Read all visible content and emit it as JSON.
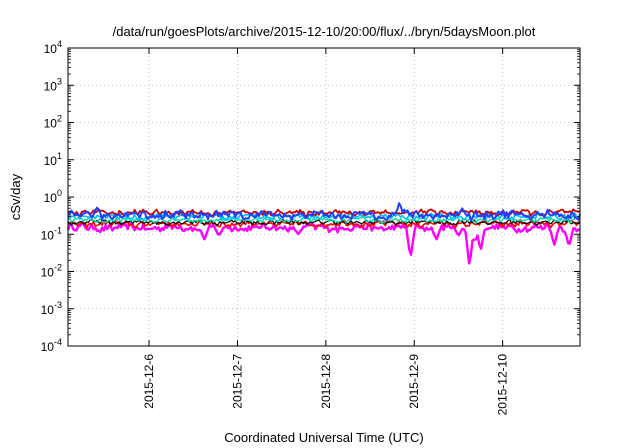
{
  "chart_data": {
    "type": "line",
    "title": "/data/run/goesPlots/archive/2015-12-10/20:00/flux/../bryn/5daysMoon.plot",
    "xlabel": "Coordinated Universal Time (UTC)",
    "ylabel": "cSv/day",
    "yscale": "log",
    "ylim": [
      0.0001,
      10000
    ],
    "y_ticks": [
      {
        "value": 0.0001,
        "base": "10",
        "exp": "-4"
      },
      {
        "value": 0.001,
        "base": "10",
        "exp": "-3"
      },
      {
        "value": 0.01,
        "base": "10",
        "exp": "-2"
      },
      {
        "value": 0.1,
        "base": "10",
        "exp": "-1"
      },
      {
        "value": 1,
        "base": "10",
        "exp": "0"
      },
      {
        "value": 10,
        "base": "10",
        "exp": "1"
      },
      {
        "value": 100,
        "base": "10",
        "exp": "2"
      },
      {
        "value": 1000,
        "base": "10",
        "exp": "3"
      },
      {
        "value": 10000,
        "base": "10",
        "exp": "4"
      }
    ],
    "xlim": [
      "2015-12-05 02:00",
      "2015-12-10 21:00"
    ],
    "x_ticks": [
      "2015-12-6",
      "2015-12-7",
      "2015-12-8",
      "2015-12-9",
      "2015-12-10"
    ],
    "x_tick_dates": [
      "2015-12-06 00:00",
      "2015-12-07 00:00",
      "2015-12-08 00:00",
      "2015-12-09 00:00",
      "2015-12-10 00:00"
    ],
    "grid": true,
    "series": [
      {
        "color": "#ff00ff",
        "level": 0.15,
        "noise": 0.16,
        "lw": 2.4,
        "dips": [
          {
            "x": "2015-12-06 15:00",
            "y": 0.07
          },
          {
            "x": "2015-12-06 19:00",
            "y": 0.09
          },
          {
            "x": "2015-12-07 16:30",
            "y": 0.1
          },
          {
            "x": "2015-12-08 23:00",
            "y": 0.023
          },
          {
            "x": "2015-12-09 06:00",
            "y": 0.07
          },
          {
            "x": "2015-12-09 12:00",
            "y": 0.09
          },
          {
            "x": "2015-12-09 15:00",
            "y": 0.013
          },
          {
            "x": "2015-12-09 16:30",
            "y": 0.06
          },
          {
            "x": "2015-12-09 18:00",
            "y": 0.035
          },
          {
            "x": "2015-12-10 14:00",
            "y": 0.05
          },
          {
            "x": "2015-12-10 18:00",
            "y": 0.045
          }
        ]
      },
      {
        "color": "#ff0000",
        "level": 0.19,
        "noise": 0.12,
        "lw": 1.6,
        "dips": []
      },
      {
        "color": "#000000",
        "level": 0.21,
        "noise": 0.1,
        "lw": 1.2,
        "dips": []
      },
      {
        "color": "#00e0a0",
        "level": 0.24,
        "noise": 0.1,
        "lw": 1.4,
        "dips": []
      },
      {
        "color": "#00bfff",
        "level": 0.3,
        "noise": 0.12,
        "lw": 1.6,
        "dips": []
      },
      {
        "color": "#cc0000",
        "level": 0.38,
        "noise": 0.12,
        "lw": 1.8,
        "dips": []
      },
      {
        "color": "#2040ff",
        "level": 0.33,
        "noise": 0.18,
        "lw": 2.0,
        "dips": [],
        "peaks": [
          {
            "x": "2015-12-08 20:00",
            "y": 0.75
          },
          {
            "x": "2015-12-05 10:00",
            "y": 0.55
          },
          {
            "x": "2015-12-09 13:00",
            "y": 0.5
          }
        ]
      }
    ]
  }
}
